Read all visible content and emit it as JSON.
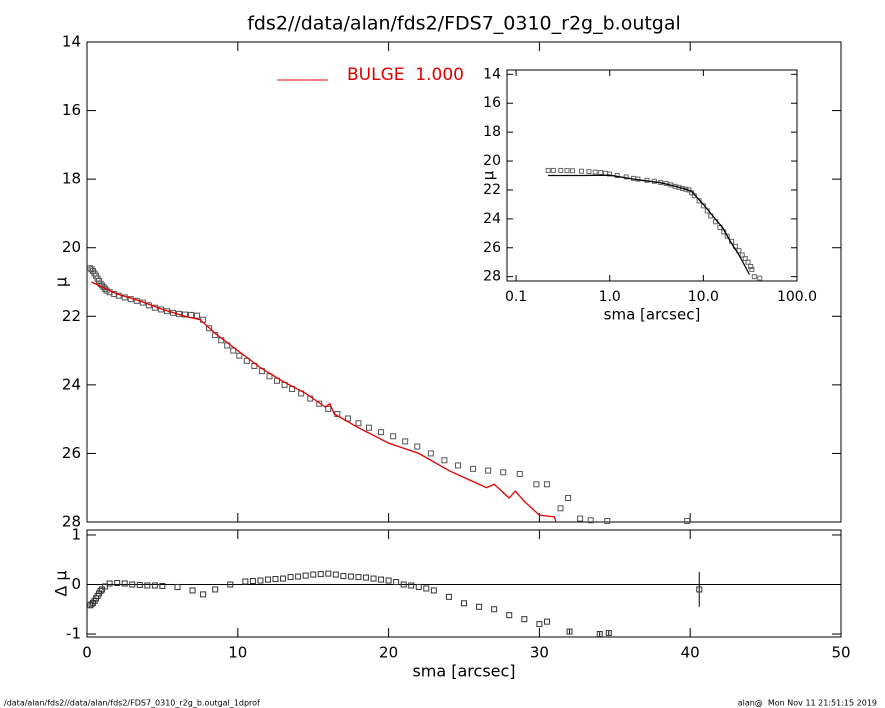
{
  "chart_data": [
    {
      "type": "scatter",
      "title": "fds2//data/alan/fds2/FDS7_0310_r2g_b.outgal",
      "y_label": "μ",
      "xlim": [
        0,
        50
      ],
      "ylim": [
        28,
        14
      ],
      "yticks": [
        14,
        16,
        18,
        20,
        22,
        24,
        26,
        28
      ],
      "series": [
        {
          "style": "squares",
          "color": "#555555",
          "x": [
            0.2,
            0.3,
            0.4,
            0.5,
            0.6,
            0.7,
            0.8,
            0.9,
            1.0,
            1.1,
            1.2,
            1.3,
            1.5,
            1.8,
            2.1,
            2.5,
            2.9,
            3.3,
            3.7,
            4.1,
            4.5,
            4.9,
            5.3,
            5.7,
            6.1,
            6.5,
            6.9,
            7.3,
            7.7,
            8.1,
            8.5,
            8.9,
            9.3,
            9.7,
            10.1,
            10.6,
            11.1,
            11.6,
            12.1,
            12.6,
            13.1,
            13.6,
            14.2,
            14.8,
            15.4,
            16.0,
            16.6,
            17.3,
            18.0,
            18.7,
            19.5,
            20.3,
            21.1,
            21.9,
            22.8,
            23.7,
            24.6,
            25.6,
            26.6,
            27.6,
            28.7,
            29.8,
            30.5,
            31.4,
            31.9,
            32.7,
            33.4,
            34.5,
            39.8
          ],
          "values": [
            20.6,
            20.63,
            20.68,
            20.75,
            20.82,
            20.9,
            20.97,
            21.05,
            21.1,
            21.15,
            21.2,
            21.25,
            21.3,
            21.35,
            21.4,
            21.45,
            21.5,
            21.55,
            21.6,
            21.68,
            21.75,
            21.8,
            21.85,
            21.9,
            21.93,
            21.95,
            21.96,
            21.98,
            22.1,
            22.35,
            22.55,
            22.7,
            22.85,
            23.0,
            23.15,
            23.3,
            23.45,
            23.6,
            23.75,
            23.88,
            24.0,
            24.12,
            24.25,
            24.4,
            24.55,
            24.7,
            24.85,
            24.98,
            25.12,
            25.25,
            25.38,
            25.5,
            25.65,
            25.8,
            26.0,
            26.2,
            26.35,
            26.45,
            26.5,
            26.55,
            26.6,
            26.9,
            26.9,
            27.6,
            27.3,
            27.9,
            27.95,
            27.97,
            27.97
          ]
        },
        {
          "style": "line",
          "name": "BULGE  1.000",
          "color": "#e00000",
          "x": [
            0.3,
            1.0,
            2.0,
            3.5,
            5.0,
            6.5,
            7.5,
            8.5,
            10.0,
            11.5,
            13.0,
            14.5,
            15.8,
            16.1,
            16.4,
            18.0,
            20.0,
            22.0,
            24.0,
            25.5,
            26.5,
            27.0,
            27.5,
            28.0,
            28.4,
            29.0,
            30.0,
            31.0,
            31.1
          ],
          "values": [
            21.0,
            21.15,
            21.35,
            21.55,
            21.8,
            22.0,
            22.1,
            22.5,
            23.0,
            23.5,
            23.9,
            24.25,
            24.65,
            24.55,
            24.85,
            25.25,
            25.7,
            26.0,
            26.5,
            26.8,
            27.0,
            26.9,
            27.1,
            27.3,
            27.1,
            27.4,
            27.8,
            27.85,
            28.0
          ]
        }
      ]
    },
    {
      "type": "scatter",
      "x_label": "sma [arcsec]",
      "y_label": "Δ μ",
      "xlim": [
        0,
        50
      ],
      "xticks": [
        0,
        10,
        20,
        30,
        40,
        50
      ],
      "ylim": [
        -1.06,
        1.1
      ],
      "yticks": [
        -1,
        0,
        1
      ],
      "reference_line": 0,
      "series": [
        {
          "style": "squares",
          "color": "#333333",
          "x": [
            0.2,
            0.3,
            0.4,
            0.5,
            0.6,
            0.7,
            0.8,
            0.9,
            1.0,
            1.2,
            1.5,
            2.0,
            2.5,
            3.0,
            3.5,
            4.0,
            4.5,
            5.0,
            6.0,
            7.0,
            7.7,
            8.5,
            9.5,
            10.5,
            11.0,
            11.5,
            12.0,
            12.5,
            13.0,
            13.5,
            14.0,
            14.5,
            15.0,
            15.5,
            16.0,
            16.5,
            17.0,
            17.5,
            18.0,
            18.5,
            19.0,
            19.5,
            20.0,
            20.5,
            21.0,
            21.5,
            22.0,
            22.5,
            23.0,
            24.0,
            25.0,
            26.0,
            27.0,
            28.0,
            29.0,
            30.0,
            30.5,
            32.0,
            34.0,
            34.6,
            40.6
          ],
          "values": [
            -0.42,
            -0.4,
            -0.37,
            -0.33,
            -0.28,
            -0.23,
            -0.18,
            -0.13,
            -0.1,
            -0.04,
            0.02,
            0.03,
            0.02,
            0.0,
            -0.01,
            -0.02,
            -0.02,
            -0.03,
            -0.05,
            -0.12,
            -0.2,
            -0.1,
            0.0,
            0.06,
            0.07,
            0.08,
            0.1,
            0.11,
            0.12,
            0.15,
            0.16,
            0.18,
            0.2,
            0.21,
            0.22,
            0.2,
            0.17,
            0.16,
            0.15,
            0.14,
            0.12,
            0.1,
            0.08,
            0.05,
            0.0,
            -0.02,
            -0.05,
            -0.08,
            -0.12,
            -0.25,
            -0.38,
            -0.45,
            -0.5,
            -0.62,
            -0.7,
            -0.8,
            -0.75,
            -0.95,
            -1.0,
            -0.98,
            -0.1
          ],
          "errors": [
            null,
            null,
            null,
            null,
            null,
            null,
            null,
            null,
            null,
            null,
            null,
            null,
            null,
            null,
            null,
            null,
            null,
            null,
            null,
            null,
            null,
            null,
            null,
            null,
            null,
            null,
            null,
            null,
            null,
            null,
            null,
            null,
            null,
            null,
            null,
            null,
            null,
            null,
            null,
            null,
            null,
            null,
            null,
            null,
            null,
            null,
            null,
            null,
            null,
            null,
            null,
            null,
            null,
            null,
            null,
            null,
            null,
            0.04,
            0.04,
            0.04,
            0.35
          ]
        }
      ]
    },
    {
      "type": "scatter",
      "x_label": "sma [arcsec]",
      "y_label": "μ",
      "xlog": true,
      "xlim": [
        0.08,
        100
      ],
      "xticks": [
        {
          "value": 0.1,
          "label": "0.1"
        },
        {
          "value": 1,
          "label": "1.0"
        },
        {
          "value": 10,
          "label": "10.0"
        },
        {
          "value": 100,
          "label": "100.0"
        }
      ],
      "ylim": [
        28.3,
        13.7
      ],
      "yticks": [
        14,
        16,
        18,
        20,
        22,
        24,
        26,
        28
      ],
      "series": [
        {
          "style": "squares",
          "color": "#666666",
          "x": [
            0.22,
            0.25,
            0.3,
            0.35,
            0.4,
            0.5,
            0.6,
            0.7,
            0.8,
            0.9,
            1.0,
            1.2,
            1.5,
            1.8,
            2.0,
            2.5,
            3.0,
            3.5,
            4.0,
            4.5,
            5.0,
            5.5,
            6.0,
            6.5,
            7.0,
            7.5,
            8.0,
            9.0,
            10.0,
            11.0,
            12.0,
            13.5,
            15.0,
            16.5,
            18.0,
            20.0,
            22.0,
            24.0,
            26.0,
            28.0,
            30.0,
            32.0,
            33.0,
            35.0,
            40.0
          ],
          "values": [
            20.65,
            20.65,
            20.65,
            20.66,
            20.67,
            20.7,
            20.73,
            20.76,
            20.8,
            20.85,
            20.9,
            21.0,
            21.1,
            21.2,
            21.25,
            21.33,
            21.4,
            21.48,
            21.55,
            21.65,
            21.75,
            21.82,
            21.9,
            21.95,
            22.0,
            22.2,
            22.4,
            22.75,
            23.1,
            23.45,
            23.8,
            24.2,
            24.6,
            24.9,
            25.2,
            25.55,
            25.9,
            26.2,
            26.5,
            26.75,
            27.0,
            27.3,
            27.5,
            28.0,
            28.1
          ]
        },
        {
          "style": "line",
          "color": "#000000",
          "x": [
            0.22,
            0.5,
            1.0,
            2.0,
            3.5,
            5.0,
            6.5,
            7.5,
            8.5,
            10.0,
            13.0,
            16.0,
            20.0,
            24.0,
            28.0,
            31.0
          ],
          "values": [
            21.0,
            21.0,
            20.98,
            21.3,
            21.5,
            21.75,
            21.95,
            22.1,
            22.5,
            23.0,
            23.9,
            24.6,
            25.7,
            26.5,
            27.3,
            27.85
          ]
        }
      ]
    }
  ],
  "footer": {
    "left": "/data/alan/fds2//data/alan/fds2/FDS7_0310_r2g_b.outgal_1dprof",
    "right": "alan@  Mon Nov 11 21:51:15 2019"
  }
}
